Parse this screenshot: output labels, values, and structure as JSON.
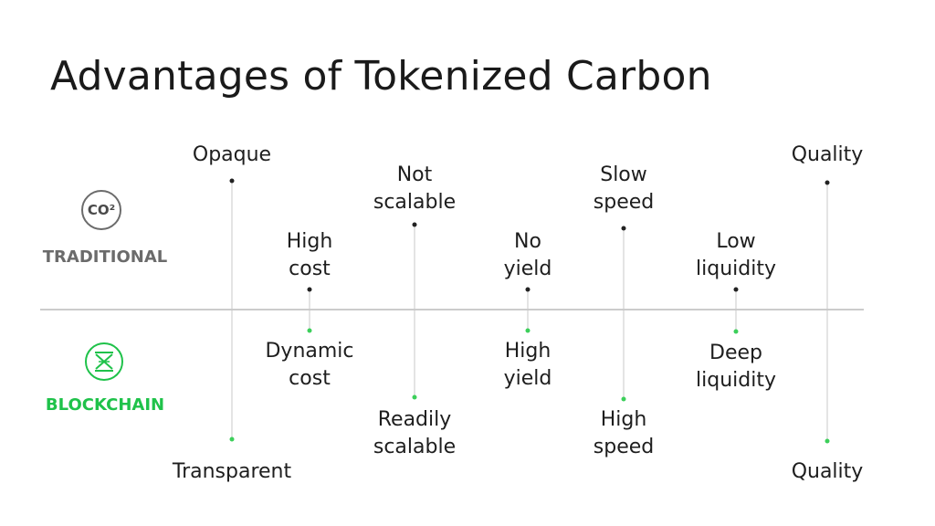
{
  "title": "Advantages of Tokenized Carbon",
  "traditional": {
    "label": "TRADITIONAL",
    "icon": "co2-icon",
    "icon_text": "CO²",
    "color": "#6b6b6b"
  },
  "blockchain": {
    "label": "BLOCKCHAIN",
    "icon": "blockchain-logo-icon",
    "color": "#1fc24a"
  },
  "colors": {
    "traditional_dot": "#222222",
    "blockchain_dot": "#3ccf5a",
    "line": "#c8c8c8",
    "divider": "#9a9a9a"
  },
  "items": [
    {
      "traditional": [
        "Opaque"
      ],
      "blockchain": [
        "Transparent"
      ]
    },
    {
      "traditional": [
        "High",
        "cost"
      ],
      "blockchain": [
        "Dynamic",
        "cost"
      ]
    },
    {
      "traditional": [
        "Not",
        "scalable"
      ],
      "blockchain": [
        "Readily",
        "scalable"
      ]
    },
    {
      "traditional": [
        "No",
        "yield"
      ],
      "blockchain": [
        "High",
        "yield"
      ]
    },
    {
      "traditional": [
        "Slow",
        "speed"
      ],
      "blockchain": [
        "High",
        "speed"
      ]
    },
    {
      "traditional": [
        "Low",
        "liquidity"
      ],
      "blockchain": [
        "Deep",
        "liquidity"
      ]
    },
    {
      "traditional": [
        "Quality"
      ],
      "blockchain": [
        "Quality"
      ]
    }
  ]
}
